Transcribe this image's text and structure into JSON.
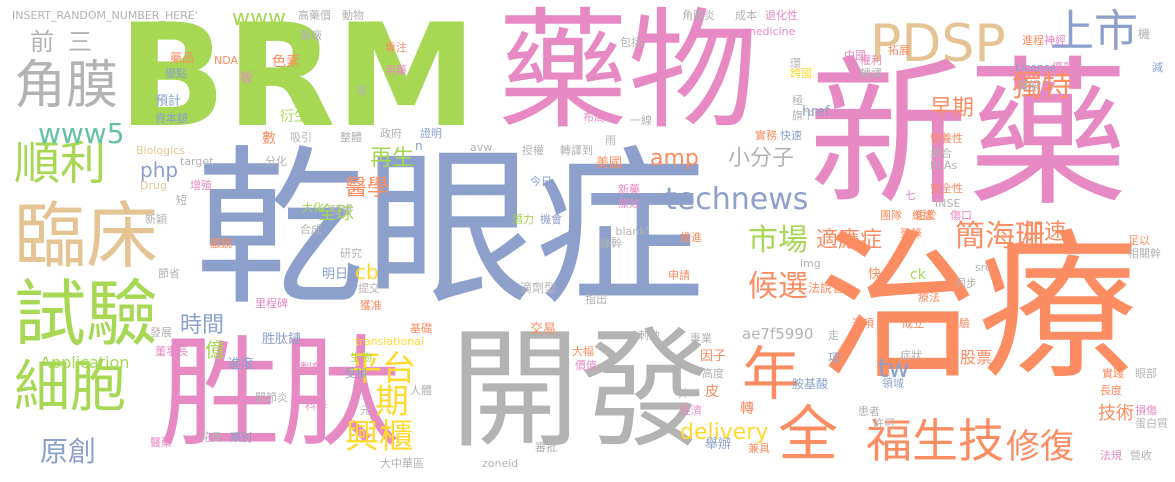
{
  "colors": {
    "green": "#a6d854",
    "pink": "#e78ac3",
    "blue": "#8da0cb",
    "orange": "#fc8d62",
    "gray": "#b3b3b3",
    "tan": "#e5c494",
    "yellow": "#ffd92f",
    "teal": "#66c2a5"
  },
  "words": [
    {
      "text": "乾眼症",
      "color": "blue"
    },
    {
      "text": "治療",
      "color": "orange"
    },
    {
      "text": "新藥",
      "color": "pink"
    },
    {
      "text": "BRM",
      "color": "green"
    },
    {
      "text": "藥物",
      "color": "pink"
    },
    {
      "text": "開發",
      "color": "gray"
    },
    {
      "text": "胜肽",
      "color": "pink"
    },
    {
      "text": "臨床",
      "color": "tan"
    },
    {
      "text": "試驗",
      "color": "green"
    },
    {
      "text": "細胞",
      "color": "green"
    },
    {
      "text": "PDSP",
      "color": "tan"
    },
    {
      "text": "角膜",
      "color": "gray"
    },
    {
      "text": "順利",
      "color": "green"
    },
    {
      "text": "福生技",
      "color": "orange"
    },
    {
      "text": "上市",
      "color": "blue"
    },
    {
      "text": "全",
      "color": "orange"
    },
    {
      "text": "年",
      "color": "orange"
    },
    {
      "text": "平台",
      "color": "yellow"
    },
    {
      "text": "興櫃",
      "color": "yellow"
    },
    {
      "text": "期",
      "color": "yellow"
    },
    {
      "text": "technews",
      "color": "blue"
    },
    {
      "text": "修復",
      "color": "orange"
    },
    {
      "text": "簡海珊",
      "color": "orange"
    },
    {
      "text": "獨特",
      "color": "orange"
    },
    {
      "text": "市場",
      "color": "green"
    },
    {
      "text": "候選",
      "color": "orange"
    },
    {
      "text": "www5",
      "color": "teal"
    },
    {
      "text": "原創",
      "color": "blue"
    },
    {
      "text": "www",
      "color": "green"
    },
    {
      "text": "delivery",
      "color": "yellow"
    },
    {
      "text": "再生",
      "color": "green"
    },
    {
      "text": "醫學",
      "color": "orange"
    },
    {
      "text": "小分子",
      "color": "gray"
    },
    {
      "text": "時間",
      "color": "blue"
    },
    {
      "text": "amp",
      "color": "orange"
    },
    {
      "text": "tw",
      "color": "blue"
    },
    {
      "text": "加速",
      "color": "orange"
    },
    {
      "text": "適應症",
      "color": "orange"
    },
    {
      "text": "早期",
      "color": "orange"
    },
    {
      "text": "全球",
      "color": "green"
    },
    {
      "text": "前",
      "color": "gray"
    },
    {
      "text": "三",
      "color": "gray"
    },
    {
      "text": "php",
      "color": "blue"
    },
    {
      "text": "cb",
      "color": "yellow"
    },
    {
      "text": "億",
      "color": "green"
    },
    {
      "text": "Application",
      "color": "green"
    },
    {
      "text": "ae7f5990",
      "color": "gray"
    },
    {
      "text": "技術",
      "color": "orange"
    },
    {
      "text": "股票",
      "color": "orange"
    },
    {
      "text": "INSERT_RANDOM_NUMBER_HERE'",
      "color": "gray"
    },
    {
      "text": "高藥價",
      "color": "gray"
    },
    {
      "text": "動物",
      "color": "gray"
    },
    {
      "text": "角膜炎",
      "color": "gray"
    },
    {
      "text": "成本",
      "color": "gray"
    },
    {
      "text": "退化性",
      "color": "pink"
    },
    {
      "text": "藥品",
      "color": "orange"
    },
    {
      "text": "NDA",
      "color": "orange"
    },
    {
      "text": "藥廠",
      "color": "gray"
    },
    {
      "text": "專注",
      "color": "orange"
    },
    {
      "text": "包括",
      "color": "gray"
    },
    {
      "text": "medicine",
      "color": "pink"
    },
    {
      "text": "拓展",
      "color": "orange"
    },
    {
      "text": "進程",
      "color": "orange"
    },
    {
      "text": "神經",
      "color": "pink"
    },
    {
      "text": "機",
      "color": "gray"
    },
    {
      "text": "優點",
      "color": "blue"
    },
    {
      "text": "色素",
      "color": "orange"
    },
    {
      "text": "板",
      "color": "pink"
    },
    {
      "text": "用藥",
      "color": "pink"
    },
    {
      "text": "中國",
      "color": "pink"
    },
    {
      "text": "權利",
      "color": "pink"
    },
    {
      "text": "轉譯",
      "color": "gray"
    },
    {
      "text": "License",
      "color": "blue"
    },
    {
      "text": "優勢",
      "color": "pink"
    },
    {
      "text": "預計",
      "color": "blue"
    },
    {
      "text": "資本額",
      "color": "blue"
    },
    {
      "text": "衍生",
      "color": "green"
    },
    {
      "text": "href",
      "color": "blue"
    },
    {
      "text": "跨國",
      "color": "yellow"
    },
    {
      "text": "緩解",
      "color": "gray"
    },
    {
      "text": "遠",
      "color": "gray"
    },
    {
      "text": "布局",
      "color": "pink"
    },
    {
      "text": "一線",
      "color": "gray"
    },
    {
      "text": "極",
      "color": "gray"
    },
    {
      "text": "旗下",
      "color": "gray"
    },
    {
      "text": "數",
      "color": "orange"
    },
    {
      "text": "吸引",
      "color": "gray"
    },
    {
      "text": "整體",
      "color": "gray"
    },
    {
      "text": "政府",
      "color": "gray"
    },
    {
      "text": "證明",
      "color": "blue"
    },
    {
      "text": "n",
      "color": "blue"
    },
    {
      "text": "avw",
      "color": "gray"
    },
    {
      "text": "雨",
      "color": "gray"
    },
    {
      "text": "實務",
      "color": "orange"
    },
    {
      "text": "快速",
      "color": "blue"
    },
    {
      "text": "營養性",
      "color": "orange"
    },
    {
      "text": "Biologics",
      "color": "tan"
    },
    {
      "text": "target",
      "color": "gray"
    },
    {
      "text": "分化",
      "color": "gray"
    },
    {
      "text": "美國",
      "color": "orange"
    },
    {
      "text": "授權",
      "color": "gray"
    },
    {
      "text": "轉譯到",
      "color": "gray"
    },
    {
      "text": "BLAs",
      "color": "gray"
    },
    {
      "text": "癒合",
      "color": "gray"
    },
    {
      "text": "安全性",
      "color": "orange"
    },
    {
      "text": "Drug",
      "color": "tan"
    },
    {
      "text": "增殖",
      "color": "pink"
    },
    {
      "text": "短",
      "color": "gray"
    },
    {
      "text": "今日",
      "color": "blue"
    },
    {
      "text": "新藥",
      "color": "pink"
    },
    {
      "text": "療效",
      "color": "pink"
    },
    {
      "text": "七",
      "color": "pink"
    },
    {
      "text": "團隊",
      "color": "orange"
    },
    {
      "text": "INSE",
      "color": "gray"
    },
    {
      "text": "新穎",
      "color": "gray"
    },
    {
      "text": "大化",
      "color": "green"
    },
    {
      "text": "監管",
      "color": "gray"
    },
    {
      "text": "潛力",
      "color": "green"
    },
    {
      "text": "機會",
      "color": "blue"
    },
    {
      "text": "_blank'",
      "color": "gray"
    },
    {
      "text": "維護",
      "color": "orange"
    },
    {
      "text": "短於",
      "color": "orange"
    },
    {
      "text": "傷口",
      "color": "pink"
    },
    {
      "text": "合成",
      "color": "gray"
    },
    {
      "text": "綠幹",
      "color": "gray"
    },
    {
      "text": "推進",
      "color": "orange"
    },
    {
      "text": "登錄",
      "color": "orange"
    },
    {
      "text": "嚴鏡",
      "color": "orange"
    },
    {
      "text": "研究",
      "color": "gray"
    },
    {
      "text": "img",
      "color": "gray"
    },
    {
      "text": "src",
      "color": "gray"
    },
    {
      "text": "相關幹",
      "color": "gray"
    },
    {
      "text": "足以",
      "color": "orange"
    },
    {
      "text": "節省",
      "color": "gray"
    },
    {
      "text": "提交",
      "color": "gray"
    },
    {
      "text": "明日",
      "color": "blue"
    },
    {
      "text": "申請",
      "color": "orange"
    },
    {
      "text": "快",
      "color": "orange"
    },
    {
      "text": "ck",
      "color": "green"
    },
    {
      "text": "法說會",
      "color": "orange"
    },
    {
      "text": "同步",
      "color": "gray"
    },
    {
      "text": "滴劑型",
      "color": "gray"
    },
    {
      "text": "指出",
      "color": "gray"
    },
    {
      "text": "療法",
      "color": "orange"
    },
    {
      "text": "獲准",
      "color": "orange"
    },
    {
      "text": "里程碑",
      "color": "pink"
    },
    {
      "text": "基礎",
      "color": "orange"
    },
    {
      "text": "交易",
      "color": "orange"
    },
    {
      "text": "選項",
      "color": "orange"
    },
    {
      "text": "成立",
      "color": "orange"
    },
    {
      "text": "經驗",
      "color": "orange"
    },
    {
      "text": "發展",
      "color": "gray"
    },
    {
      "text": "胜肽鏈",
      "color": "blue"
    },
    {
      "text": "translational",
      "color": "yellow"
    },
    {
      "text": "刺激",
      "color": "gray"
    },
    {
      "text": "專業",
      "color": "gray"
    },
    {
      "text": "走",
      "color": "gray"
    },
    {
      "text": "董事長",
      "color": "pink"
    },
    {
      "text": "進度",
      "color": "blue"
    },
    {
      "text": "生物",
      "color": "green"
    },
    {
      "text": "大幅",
      "color": "orange"
    },
    {
      "text": "因子",
      "color": "orange"
    },
    {
      "text": "項",
      "color": "blue"
    },
    {
      "text": "症狀",
      "color": "gray"
    },
    {
      "text": "眼部",
      "color": "gray"
    },
    {
      "text": "關節炎",
      "color": "gray"
    },
    {
      "text": "製劑",
      "color": "pink"
    },
    {
      "text": "受損",
      "color": "blue"
    },
    {
      "text": "人體",
      "color": "gray"
    },
    {
      "text": "價值",
      "color": "pink"
    },
    {
      "text": "高度",
      "color": "gray"
    },
    {
      "text": "皮",
      "color": "orange"
    },
    {
      "text": "胺基酸",
      "color": "blue"
    },
    {
      "text": "領域",
      "color": "blue"
    },
    {
      "text": "實踐",
      "color": "orange"
    },
    {
      "text": "科學",
      "color": "pink"
    },
    {
      "text": "元",
      "color": "gray"
    },
    {
      "text": "外",
      "color": "gray"
    },
    {
      "text": "經濟",
      "color": "pink"
    },
    {
      "text": "轉",
      "color": "orange"
    },
    {
      "text": "長度",
      "color": "orange"
    },
    {
      "text": "損傷",
      "color": "pink"
    },
    {
      "text": "花費",
      "color": "gray"
    },
    {
      "text": "類別",
      "color": "blue"
    },
    {
      "text": "a",
      "color": "gray"
    },
    {
      "text": "許可",
      "color": "gray"
    },
    {
      "text": "患者",
      "color": "gray"
    },
    {
      "text": "蛋白質",
      "color": "gray"
    },
    {
      "text": "醫藥",
      "color": "pink"
    },
    {
      "text": "審批",
      "color": "gray"
    },
    {
      "text": "舉辦",
      "color": "blue"
    },
    {
      "text": "兼具",
      "color": "orange"
    },
    {
      "text": "法規",
      "color": "pink"
    },
    {
      "text": "大中華區",
      "color": "gray"
    },
    {
      "text": "zoneid",
      "color": "gray"
    },
    {
      "text": "環",
      "color": "gray"
    },
    {
      "text": "營收",
      "color": "gray"
    },
    {
      "text": "減",
      "color": "blue"
    }
  ]
}
